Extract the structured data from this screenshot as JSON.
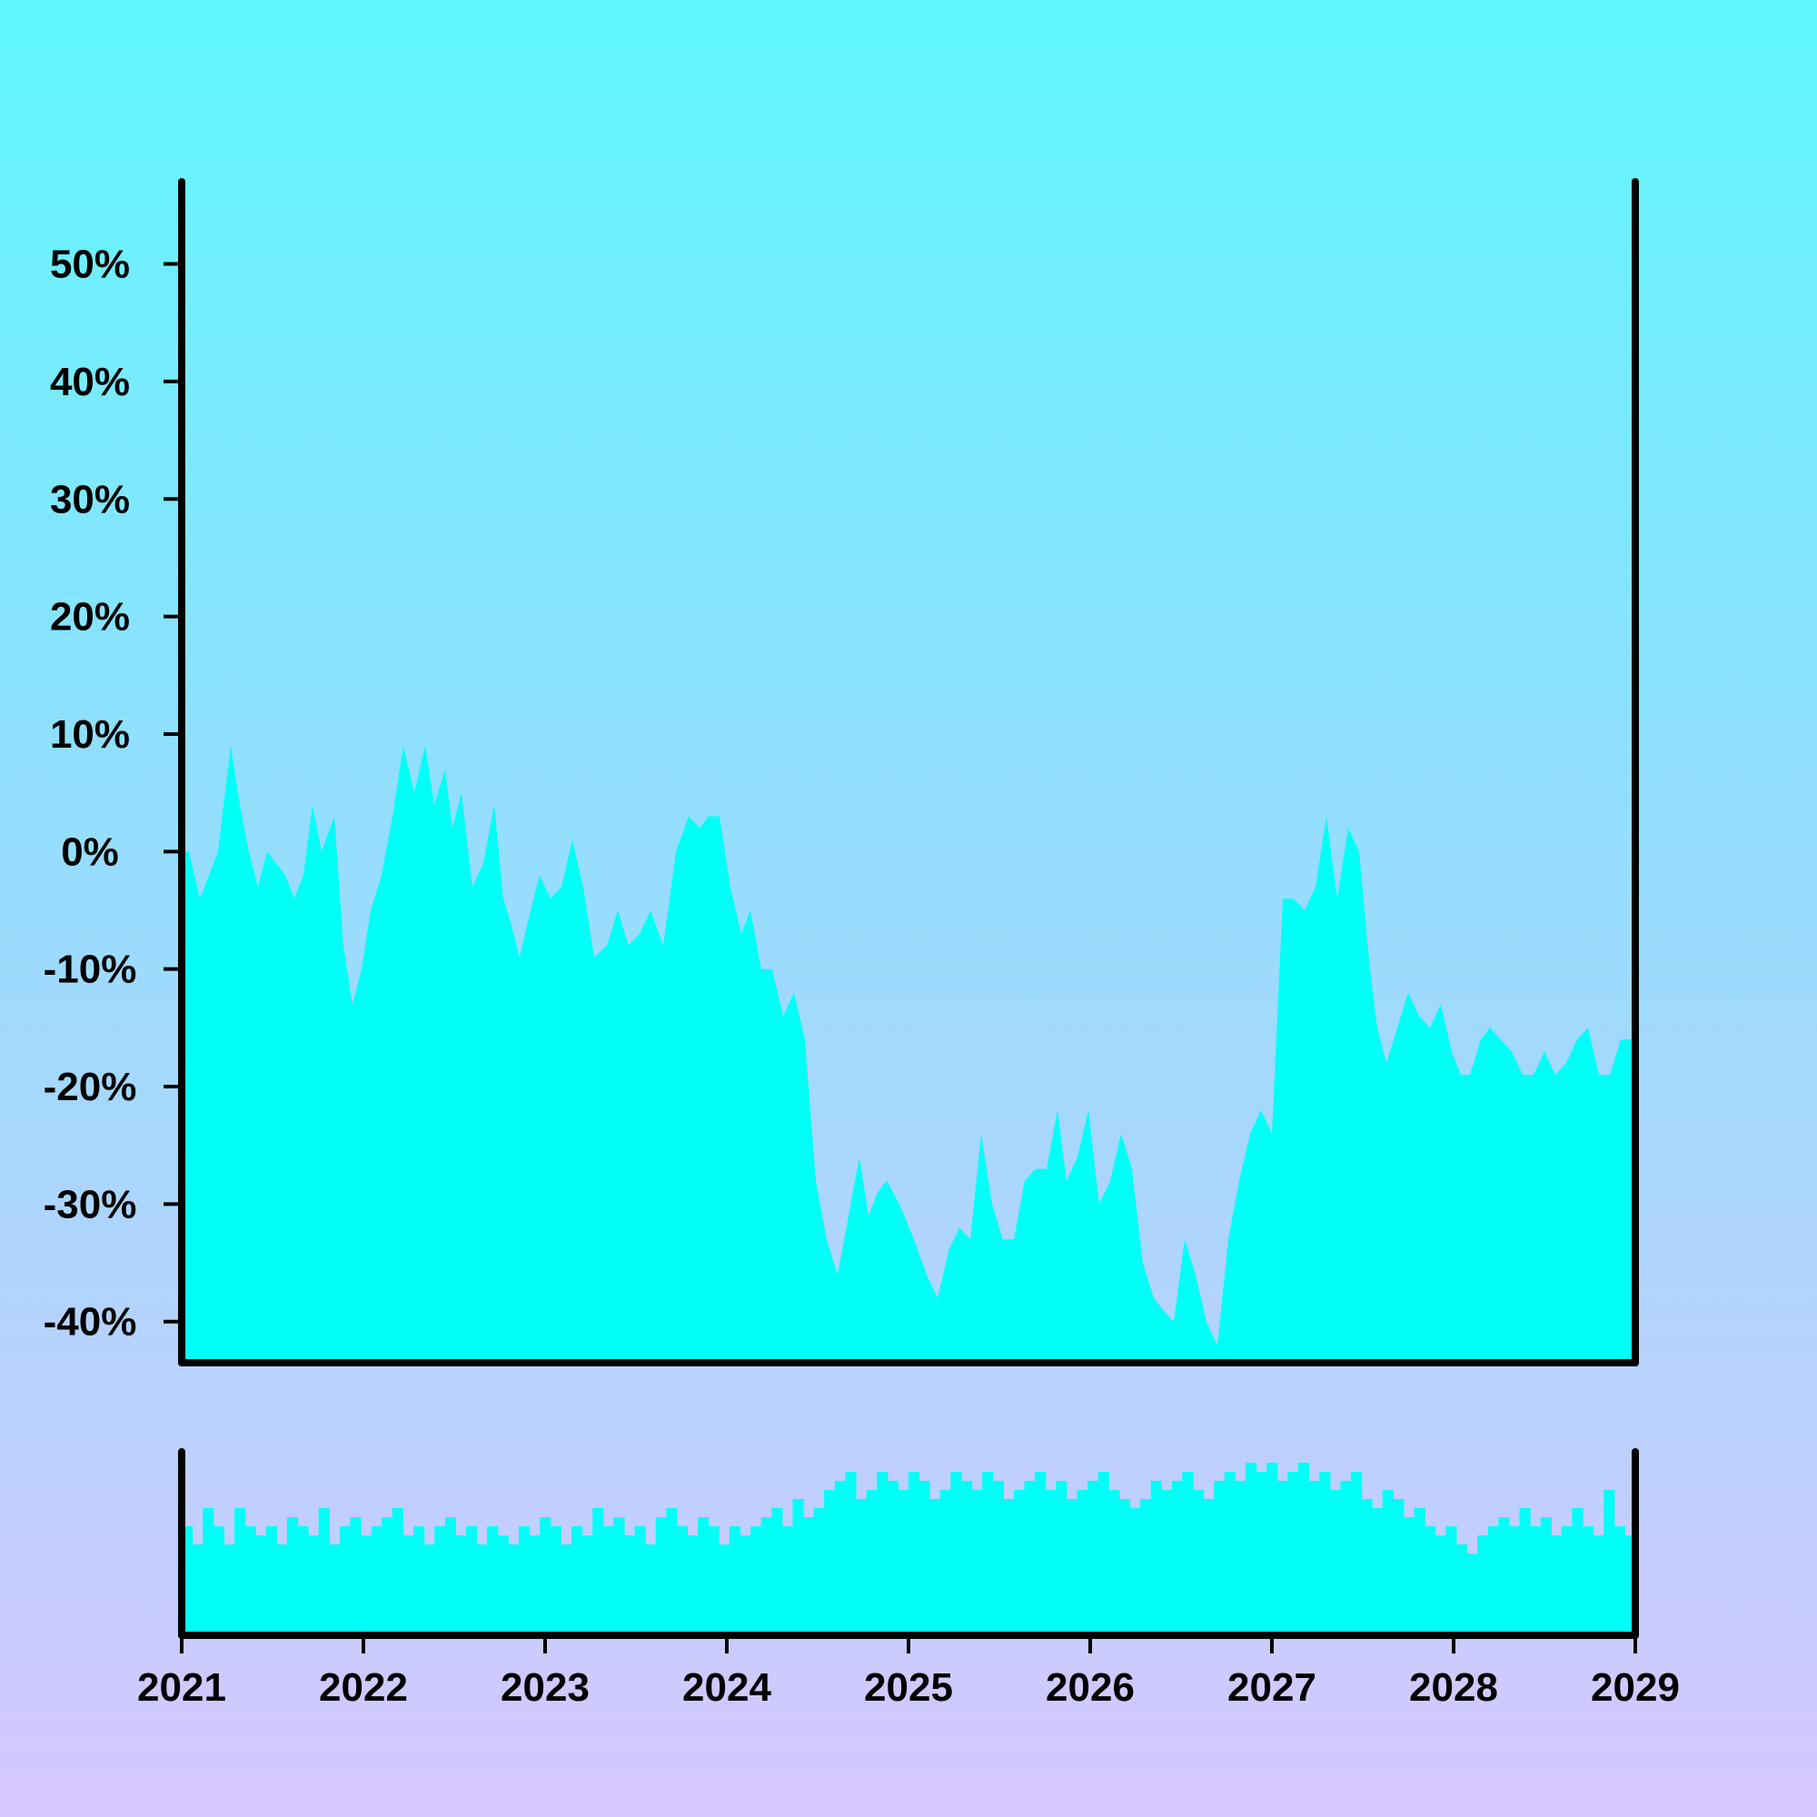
{
  "chart_data": {
    "type": "area",
    "title": "",
    "xlabel": "",
    "ylabel": "",
    "xlim": [
      2021.0,
      2029.0
    ],
    "ylim": [
      -43.5,
      57
    ],
    "x_ticks": [
      "2021",
      "2022",
      "2023",
      "2024",
      "2025",
      "2026",
      "2027",
      "2028",
      "2029"
    ],
    "y_ticks": [
      "50%",
      "40%",
      "30%",
      "20%",
      "10%",
      "0%",
      "-10%",
      "-20%",
      "-30%",
      "-40%"
    ],
    "y_tick_values": [
      50,
      40,
      30,
      20,
      10,
      0,
      -10,
      -20,
      -30,
      -40
    ],
    "fill_color": "#00fff6",
    "axis_color": "#000000",
    "grid": false,
    "series": [
      {
        "x": [
          2021.04,
          2021.1,
          2021.15,
          2021.2,
          2021.27,
          2021.32,
          2021.37,
          2021.42,
          2021.47,
          2021.52,
          2021.57,
          2021.62,
          2021.67,
          2021.72,
          2021.77,
          2021.84,
          2021.89,
          2021.94,
          2021.99,
          2022.04,
          2022.1,
          2022.16,
          2022.22,
          2022.28,
          2022.34,
          2022.39,
          2022.45,
          2022.49,
          2022.54,
          2022.6,
          2022.66,
          2022.72,
          2022.77,
          2022.81,
          2022.86,
          2022.92,
          2022.97,
          2023.03,
          2023.09,
          2023.15,
          2023.21,
          2023.27,
          2023.34,
          2023.4,
          2023.46,
          2023.52,
          2023.58,
          2023.65,
          2023.72,
          2023.79,
          2023.85,
          2023.9,
          2023.96,
          2024.02,
          2024.08,
          2024.13,
          2024.19,
          2024.25,
          2024.31,
          2024.37,
          2024.43,
          2024.49,
          2024.55,
          2024.61,
          2024.67,
          2024.73,
          2024.78,
          2024.83,
          2024.88,
          2024.95,
          2025.03,
          2025.1,
          2025.16,
          2025.22,
          2025.28,
          2025.34,
          2025.4,
          2025.46,
          2025.52,
          2025.58,
          2025.64,
          2025.7,
          2025.76,
          2025.82,
          2025.87,
          2025.93,
          2025.99,
          2026.05,
          2026.11,
          2026.17,
          2026.23,
          2026.29,
          2026.35,
          2026.4,
          2026.46,
          2026.52,
          2026.58,
          2026.64,
          2026.7,
          2026.76,
          2026.82,
          2026.88,
          2026.94,
          2027.0,
          2027.06,
          2027.12,
          2027.18,
          2027.24,
          2027.3,
          2027.36,
          2027.42,
          2027.48,
          2027.54,
          2027.58,
          2027.63,
          2027.69,
          2027.75,
          2027.81,
          2027.87,
          2027.93,
          2027.99,
          2028.04,
          2028.09,
          2028.15,
          2028.2,
          2028.26,
          2028.32,
          2028.38,
          2028.44,
          2028.5,
          2028.56,
          2028.62,
          2028.68,
          2028.74,
          2028.8,
          2028.86,
          2028.92,
          2028.98
        ],
        "values": [
          0,
          -4,
          -2,
          0,
          9,
          4,
          0,
          -3,
          0,
          -1,
          -2,
          -4,
          -2,
          4,
          0,
          3,
          -8,
          -13,
          -10,
          -5,
          -2,
          3,
          9,
          5,
          9,
          4,
          7,
          2,
          5,
          -3,
          -1,
          4,
          -4,
          -6,
          -9,
          -5,
          -2,
          -4,
          -3,
          1,
          -3,
          -9,
          -8,
          -5,
          -8,
          -7,
          -5,
          -8,
          0,
          3,
          2,
          3,
          3,
          -3,
          -7,
          -5,
          -10,
          -10,
          -14,
          -12,
          -16,
          -28,
          -33,
          -36,
          -31,
          -26,
          -31,
          -29,
          -28,
          -30,
          -33,
          -36,
          -38,
          -34,
          -32,
          -33,
          -24,
          -30,
          -33,
          -33,
          -28,
          -27,
          -27,
          -22,
          -28,
          -26,
          -22,
          -30,
          -28,
          -24,
          -27,
          -35,
          -38,
          -39,
          -40,
          -33,
          -36,
          -40,
          -42,
          -33,
          -28,
          -24,
          -22,
          -24,
          -4,
          -4,
          -5,
          -3,
          3,
          -4,
          2,
          0,
          -10,
          -15,
          -18,
          -15,
          -12,
          -14,
          -15,
          -13,
          -17,
          -19,
          -19,
          -16,
          -15,
          -16,
          -17,
          -19,
          -19,
          -17,
          -19,
          -18,
          -16,
          -15,
          -19,
          -19,
          -16,
          -16
        ],
        "volume": [
          0.6,
          0.5,
          0.7,
          0.6,
          0.5,
          0.7,
          0.6,
          0.55,
          0.6,
          0.5,
          0.65,
          0.6,
          0.55,
          0.7,
          0.5,
          0.6,
          0.65,
          0.55,
          0.6,
          0.65,
          0.7,
          0.55,
          0.6,
          0.5,
          0.6,
          0.65,
          0.55,
          0.6,
          0.5,
          0.6,
          0.55,
          0.5,
          0.6,
          0.55,
          0.65,
          0.6,
          0.5,
          0.6,
          0.55,
          0.7,
          0.6,
          0.65,
          0.55,
          0.6,
          0.5,
          0.65,
          0.7,
          0.6,
          0.55,
          0.65,
          0.6,
          0.5,
          0.6,
          0.55,
          0.6,
          0.65,
          0.7,
          0.6,
          0.75,
          0.65,
          0.7,
          0.8,
          0.85,
          0.9,
          0.75,
          0.8,
          0.9,
          0.85,
          0.8,
          0.9,
          0.85,
          0.75,
          0.8,
          0.9,
          0.85,
          0.8,
          0.9,
          0.85,
          0.75,
          0.8,
          0.85,
          0.9,
          0.8,
          0.85,
          0.75,
          0.8,
          0.85,
          0.9,
          0.8,
          0.75,
          0.7,
          0.75,
          0.85,
          0.8,
          0.85,
          0.9,
          0.8,
          0.75,
          0.85,
          0.9,
          0.85,
          0.95,
          0.9,
          0.95,
          0.85,
          0.9,
          0.95,
          0.85,
          0.9,
          0.8,
          0.85,
          0.9,
          0.75,
          0.7,
          0.8,
          0.75,
          0.65,
          0.7,
          0.6,
          0.55,
          0.6,
          0.5,
          0.45,
          0.55,
          0.6,
          0.65,
          0.6,
          0.7,
          0.6,
          0.65,
          0.55,
          0.6,
          0.7,
          0.6,
          0.55,
          0.8,
          0.6,
          0.55
        ]
      }
    ]
  }
}
